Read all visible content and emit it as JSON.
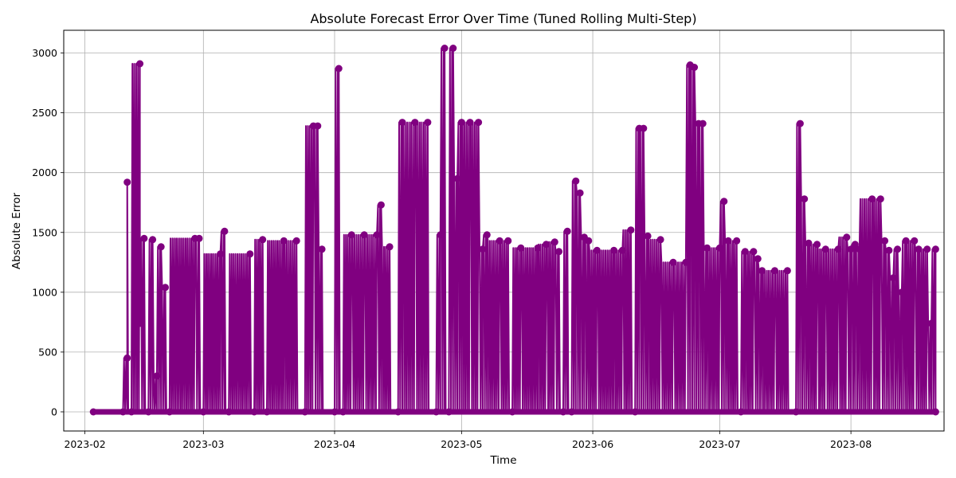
{
  "chart_data": {
    "type": "line",
    "title": "Absolute Forecast Error Over Time (Tuned Rolling Multi-Step)",
    "xlabel": "Time",
    "ylabel": "Absolute Error",
    "xlim": [
      "2023-01-27",
      "2023-08-23"
    ],
    "ylim": [
      -160,
      3190
    ],
    "x_ticks": [
      "2023-02-01",
      "2023-03-01",
      "2023-04-01",
      "2023-05-01",
      "2023-06-01",
      "2023-07-01",
      "2023-08-01"
    ],
    "x_tick_labels": [
      "2023-02",
      "2023-03",
      "2023-04",
      "2023-05",
      "2023-06",
      "2023-07",
      "2023-08"
    ],
    "y_ticks": [
      0,
      500,
      1000,
      1500,
      2000,
      2500,
      3000
    ],
    "y_tick_labels": [
      "0",
      "500",
      "1000",
      "1500",
      "2000",
      "2500",
      "3000"
    ],
    "grid": true,
    "marker": "circle",
    "color": "#800080",
    "series": [
      {
        "values": [
          [
            "2023-02-03",
            0
          ],
          [
            "2023-02-10",
            0
          ],
          [
            "2023-02-11",
            450
          ],
          [
            "2023-02-11",
            1920
          ],
          [
            "2023-02-12",
            0
          ],
          [
            "2023-02-14",
            2910
          ],
          [
            "2023-02-14",
            740
          ],
          [
            "2023-02-15",
            1450
          ],
          [
            "2023-02-16",
            0
          ],
          [
            "2023-02-17",
            1440
          ],
          [
            "2023-02-18",
            300
          ],
          [
            "2023-02-19",
            1380
          ],
          [
            "2023-02-20",
            1040
          ],
          [
            "2023-02-21",
            0
          ],
          [
            "2023-02-27",
            1450
          ],
          [
            "2023-02-28",
            1450
          ],
          [
            "2023-03-01",
            0
          ],
          [
            "2023-03-05",
            1320
          ],
          [
            "2023-03-06",
            1510
          ],
          [
            "2023-03-07",
            0
          ],
          [
            "2023-03-12",
            1320
          ],
          [
            "2023-03-13",
            0
          ],
          [
            "2023-03-15",
            1440
          ],
          [
            "2023-03-16",
            0
          ],
          [
            "2023-03-20",
            1430
          ],
          [
            "2023-03-23",
            1430
          ],
          [
            "2023-03-25",
            0
          ],
          [
            "2023-03-27",
            2390
          ],
          [
            "2023-03-28",
            2390
          ],
          [
            "2023-03-29",
            1360
          ],
          [
            "2023-04-01",
            0
          ],
          [
            "2023-04-02",
            2870
          ],
          [
            "2023-04-03",
            0
          ],
          [
            "2023-04-05",
            1480
          ],
          [
            "2023-04-08",
            1480
          ],
          [
            "2023-04-11",
            1480
          ],
          [
            "2023-04-12",
            1730
          ],
          [
            "2023-04-14",
            1380
          ],
          [
            "2023-04-16",
            0
          ],
          [
            "2023-04-17",
            2420
          ],
          [
            "2023-04-20",
            2420
          ],
          [
            "2023-04-23",
            2420
          ],
          [
            "2023-04-25",
            0
          ],
          [
            "2023-04-26",
            1480
          ],
          [
            "2023-04-27",
            3040
          ],
          [
            "2023-04-28",
            0
          ],
          [
            "2023-04-29",
            3040
          ],
          [
            "2023-04-30",
            1950
          ],
          [
            "2023-05-01",
            2420
          ],
          [
            "2023-05-03",
            2420
          ],
          [
            "2023-05-05",
            2420
          ],
          [
            "2023-05-06",
            1360
          ],
          [
            "2023-05-07",
            1480
          ],
          [
            "2023-05-10",
            1430
          ],
          [
            "2023-05-12",
            1430
          ],
          [
            "2023-05-13",
            0
          ],
          [
            "2023-05-15",
            1370
          ],
          [
            "2023-05-19",
            1370
          ],
          [
            "2023-05-21",
            1400
          ],
          [
            "2023-05-23",
            1420
          ],
          [
            "2023-05-24",
            1340
          ],
          [
            "2023-05-25",
            0
          ],
          [
            "2023-05-26",
            1510
          ],
          [
            "2023-05-27",
            0
          ],
          [
            "2023-05-28",
            1930
          ],
          [
            "2023-05-29",
            1830
          ],
          [
            "2023-05-30",
            1460
          ],
          [
            "2023-05-31",
            1430
          ],
          [
            "2023-06-02",
            1350
          ],
          [
            "2023-06-06",
            1350
          ],
          [
            "2023-06-08",
            1350
          ],
          [
            "2023-06-10",
            1520
          ],
          [
            "2023-06-11",
            0
          ],
          [
            "2023-06-12",
            2370
          ],
          [
            "2023-06-13",
            2370
          ],
          [
            "2023-06-14",
            1470
          ],
          [
            "2023-06-17",
            1440
          ],
          [
            "2023-06-20",
            1250
          ],
          [
            "2023-06-23",
            1250
          ],
          [
            "2023-06-24",
            2900
          ],
          [
            "2023-06-25",
            2880
          ],
          [
            "2023-06-26",
            2410
          ],
          [
            "2023-06-27",
            2410
          ],
          [
            "2023-06-28",
            1370
          ],
          [
            "2023-07-01",
            1370
          ],
          [
            "2023-07-02",
            1760
          ],
          [
            "2023-07-03",
            1430
          ],
          [
            "2023-07-05",
            1430
          ],
          [
            "2023-07-06",
            0
          ],
          [
            "2023-07-07",
            1340
          ],
          [
            "2023-07-09",
            1340
          ],
          [
            "2023-07-10",
            1280
          ],
          [
            "2023-07-11",
            1180
          ],
          [
            "2023-07-14",
            1180
          ],
          [
            "2023-07-17",
            1180
          ],
          [
            "2023-07-19",
            0
          ],
          [
            "2023-07-20",
            2410
          ],
          [
            "2023-07-21",
            1780
          ],
          [
            "2023-07-22",
            1410
          ],
          [
            "2023-07-24",
            1400
          ],
          [
            "2023-07-26",
            1360
          ],
          [
            "2023-07-29",
            1360
          ],
          [
            "2023-07-31",
            1460
          ],
          [
            "2023-08-01",
            1360
          ],
          [
            "2023-08-02",
            1400
          ],
          [
            "2023-08-03",
            1360
          ],
          [
            "2023-08-06",
            1780
          ],
          [
            "2023-08-08",
            1780
          ],
          [
            "2023-08-09",
            1430
          ],
          [
            "2023-08-10",
            1350
          ],
          [
            "2023-08-11",
            1120
          ],
          [
            "2023-08-12",
            1360
          ],
          [
            "2023-08-13",
            1000
          ],
          [
            "2023-08-14",
            1430
          ],
          [
            "2023-08-16",
            1430
          ],
          [
            "2023-08-17",
            1360
          ],
          [
            "2023-08-19",
            1360
          ],
          [
            "2023-08-20",
            740
          ],
          [
            "2023-08-21",
            1360
          ],
          [
            "2023-08-21",
            0
          ]
        ]
      }
    ]
  }
}
